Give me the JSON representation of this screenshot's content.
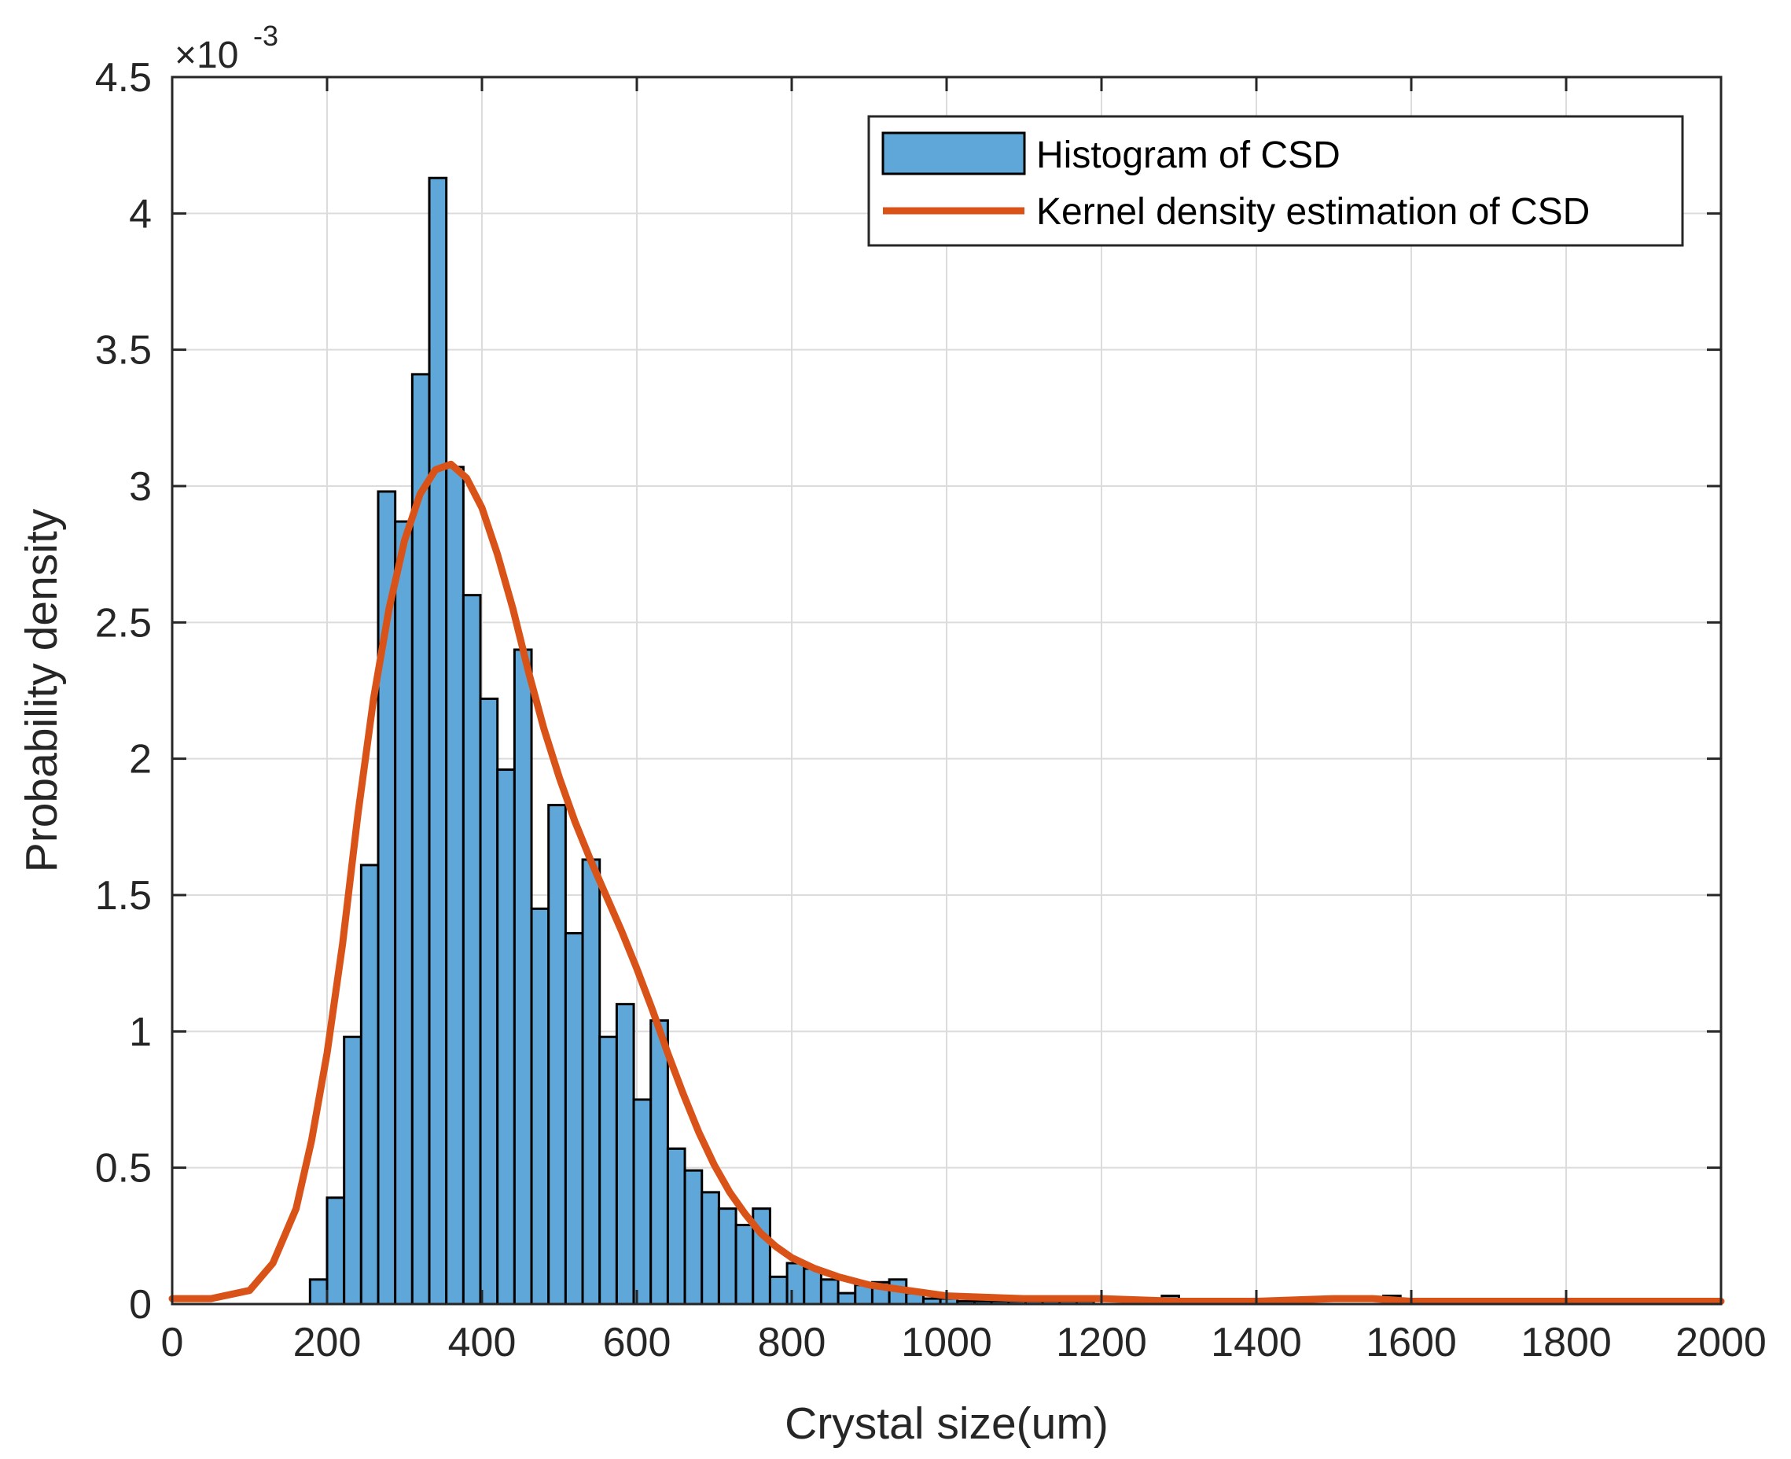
{
  "chart_data": {
    "type": "bar",
    "title": "",
    "xlabel": "Crystal size(um)",
    "ylabel": "Probability density",
    "xlim": [
      0,
      2000
    ],
    "ylim": [
      0,
      0.0045
    ],
    "x_ticks": [
      0,
      200,
      400,
      600,
      800,
      1000,
      1200,
      1400,
      1600,
      1800,
      2000
    ],
    "x_tick_labels": [
      "0",
      "200",
      "400",
      "600",
      "800",
      "1000",
      "1200",
      "1400",
      "1600",
      "1800",
      "2000"
    ],
    "y_ticks": [
      0,
      0.0005,
      0.001,
      0.0015,
      0.002,
      0.0025,
      0.003,
      0.0035,
      0.004,
      0.0045
    ],
    "y_tick_labels": [
      "0",
      "0.5",
      "1",
      "1.5",
      "2",
      "2.5",
      "3",
      "3.5",
      "4",
      "4.5"
    ],
    "y_exponent_label": "×10",
    "y_exponent_power": "-3",
    "grid": true,
    "legend_position": "top-right",
    "colors": {
      "histogram": "#5FA7D8",
      "kde": "#D95319",
      "axis": "#262626",
      "grid": "#dcdcdc"
    },
    "series": [
      {
        "name": "Histogram of CSD",
        "type": "histogram",
        "bin_width": 22,
        "bin_edges_start": 178,
        "values": [
          9e-05,
          0.00039,
          0.00098,
          0.00161,
          0.00298,
          0.00287,
          0.00341,
          0.00413,
          0.00307,
          0.0026,
          0.00222,
          0.00196,
          0.0024,
          0.00145,
          0.00183,
          0.00136,
          0.00163,
          0.00098,
          0.0011,
          0.00075,
          0.00104,
          0.00057,
          0.00049,
          0.00041,
          0.00035,
          0.00029,
          0.00035,
          0.0001,
          0.00015,
          0.00013,
          9e-05,
          4e-05,
          7e-05,
          8e-05,
          9e-05,
          4e-05,
          2e-05,
          2e-05,
          1e-05,
          1e-05,
          1e-05,
          1e-05,
          1e-05,
          1e-05,
          1e-05,
          1e-05,
          0.0,
          0.0,
          0.0,
          0.0,
          3e-05,
          0.0,
          0.0,
          0.0,
          0.0,
          0.0,
          0.0,
          0.0,
          0.0,
          0.0,
          0.0,
          0.0,
          0.0,
          3e-05
        ]
      },
      {
        "name": "Kernel density estimation of CSD",
        "type": "line",
        "x": [
          0,
          50,
          100,
          130,
          160,
          180,
          200,
          220,
          240,
          260,
          280,
          300,
          320,
          340,
          360,
          380,
          400,
          420,
          440,
          460,
          480,
          500,
          520,
          540,
          560,
          580,
          600,
          620,
          640,
          660,
          680,
          700,
          720,
          740,
          760,
          780,
          800,
          830,
          860,
          900,
          950,
          1000,
          1100,
          1200,
          1300,
          1400,
          1500,
          1550,
          1600,
          1700,
          1800,
          1900,
          2000
        ],
        "y": [
          2e-05,
          2e-05,
          5e-05,
          0.00015,
          0.00035,
          0.0006,
          0.00092,
          0.00132,
          0.0018,
          0.00222,
          0.00255,
          0.0028,
          0.00297,
          0.00306,
          0.00308,
          0.00303,
          0.00292,
          0.00275,
          0.00255,
          0.00232,
          0.00211,
          0.00193,
          0.00177,
          0.00163,
          0.0015,
          0.00137,
          0.00123,
          0.00108,
          0.00092,
          0.00077,
          0.00063,
          0.00051,
          0.00041,
          0.00033,
          0.00026,
          0.00021,
          0.00017,
          0.00013,
          0.0001,
          7e-05,
          5e-05,
          3e-05,
          2e-05,
          2e-05,
          1e-05,
          1e-05,
          2e-05,
          2e-05,
          1e-05,
          1e-05,
          1e-05,
          1e-05,
          1e-05
        ]
      }
    ]
  }
}
